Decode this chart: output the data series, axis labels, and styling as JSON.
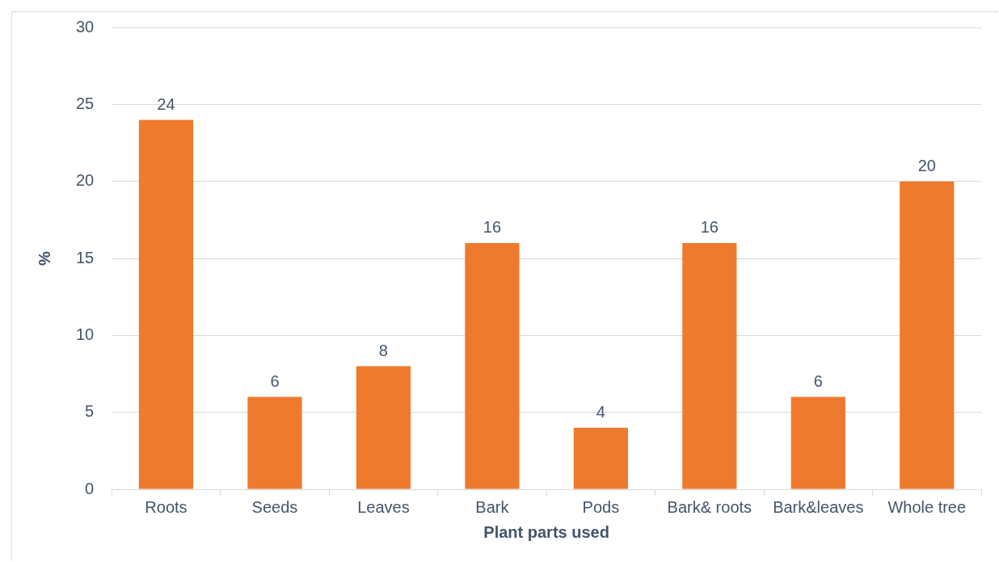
{
  "chart_data": {
    "type": "bar",
    "xlabel": "Plant parts used",
    "ylabel": "%",
    "categories": [
      "Roots",
      "Seeds",
      "Leaves",
      "Bark",
      "Pods",
      "Bark& roots",
      "Bark&leaves",
      "Whole tree"
    ],
    "values": [
      24,
      6,
      8,
      16,
      4,
      16,
      6,
      20
    ],
    "color": "#ee7a2e",
    "ylim": [
      0,
      30
    ],
    "yticks": [
      0,
      5,
      10,
      15,
      20,
      25,
      30
    ],
    "grid": "y",
    "data_labels": true,
    "legend": false
  }
}
